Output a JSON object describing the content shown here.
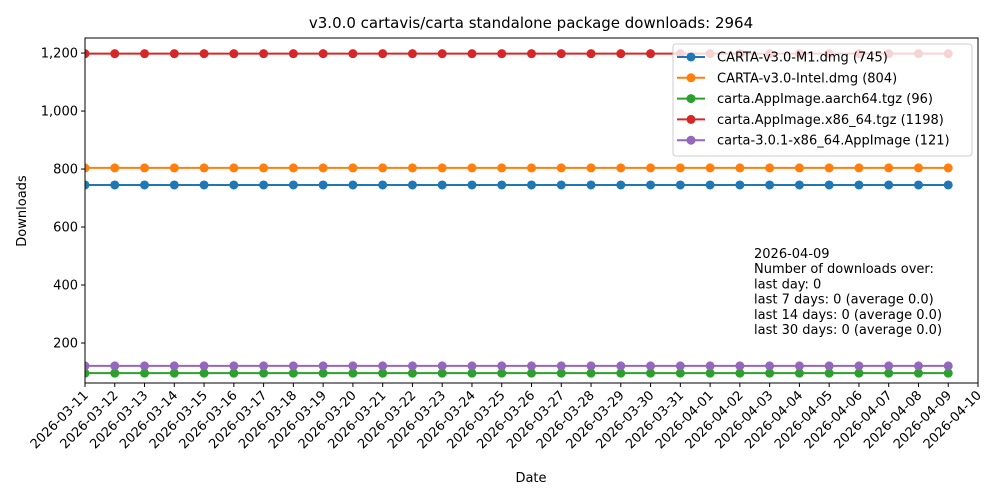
{
  "chart_data": {
    "type": "line",
    "title": "v3.0.0 cartavis/carta standalone package downloads: 2964",
    "xlabel": "Date",
    "ylabel": "Downloads",
    "ylim": [
      62,
      1252
    ],
    "yticks": [
      200,
      400,
      600,
      800,
      1000,
      1200
    ],
    "ytick_labels": [
      "200",
      "400",
      "600",
      "800",
      "1,000",
      "1,200"
    ],
    "xtick_labels": [
      "2026-03-11",
      "2026-03-12",
      "2026-03-13",
      "2026-03-14",
      "2026-03-15",
      "2026-03-16",
      "2026-03-17",
      "2026-03-18",
      "2026-03-19",
      "2026-03-20",
      "2026-03-21",
      "2026-03-22",
      "2026-03-23",
      "2026-03-24",
      "2026-03-25",
      "2026-03-26",
      "2026-03-27",
      "2026-03-28",
      "2026-03-29",
      "2026-03-30",
      "2026-03-31",
      "2026-04-01",
      "2026-04-02",
      "2026-04-03",
      "2026-04-04",
      "2026-04-05",
      "2026-04-06",
      "2026-04-07",
      "2026-04-08",
      "2026-04-09",
      "2026-04-10"
    ],
    "x": [
      "2026-03-11",
      "2026-03-12",
      "2026-03-13",
      "2026-03-14",
      "2026-03-15",
      "2026-03-16",
      "2026-03-17",
      "2026-03-18",
      "2026-03-19",
      "2026-03-20",
      "2026-03-21",
      "2026-03-22",
      "2026-03-23",
      "2026-03-24",
      "2026-03-25",
      "2026-03-26",
      "2026-03-27",
      "2026-03-28",
      "2026-03-29",
      "2026-03-30",
      "2026-03-31",
      "2026-04-01",
      "2026-04-02",
      "2026-04-03",
      "2026-04-04",
      "2026-04-05",
      "2026-04-06",
      "2026-04-07",
      "2026-04-08",
      "2026-04-09"
    ],
    "series": [
      {
        "name": "CARTA-v3.0-M1.dmg (745)",
        "color": "#1f77b4",
        "value": 745
      },
      {
        "name": "CARTA-v3.0-Intel.dmg (804)",
        "color": "#ff7f0e",
        "value": 804
      },
      {
        "name": "carta.AppImage.aarch64.tgz (96)",
        "color": "#2ca02c",
        "value": 96
      },
      {
        "name": "carta.AppImage.x86_64.tgz (1198)",
        "color": "#d62728",
        "value": 1198
      },
      {
        "name": "carta-3.0.1-x86_64.AppImage (121)",
        "color": "#9467bd",
        "value": 121
      }
    ],
    "legend_position": "upper right",
    "grid": false,
    "annotation": {
      "lines": [
        "2026-04-09",
        "Number of downloads over:",
        "last day: 0",
        "last 7 days: 0 (average 0.0)",
        "last 14 days: 0 (average 0.0)",
        "last 30 days: 0 (average 0.0)"
      ]
    }
  }
}
